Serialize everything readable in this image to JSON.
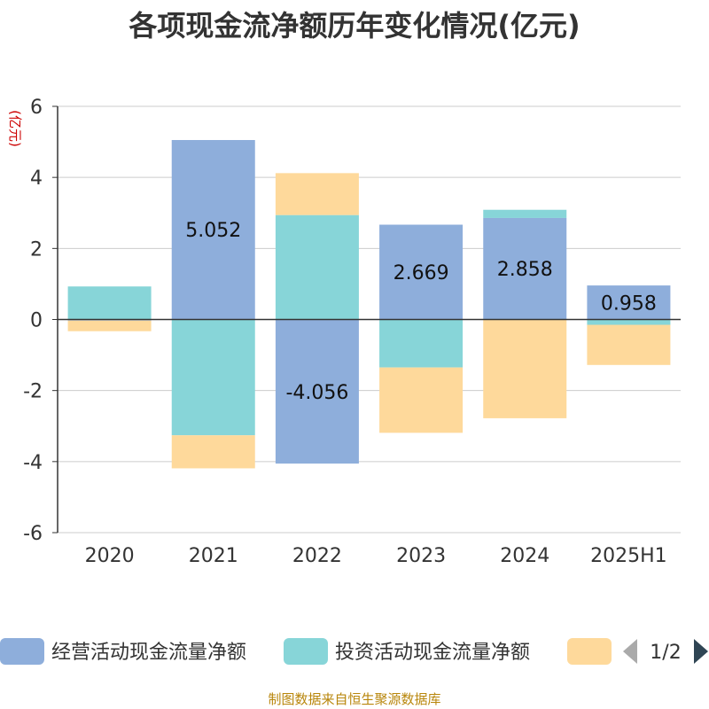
{
  "chart_data": {
    "type": "bar",
    "stacked": true,
    "title": "各项现金流净额历年变化情况(亿元)",
    "ylabel": "(亿元)",
    "categories": [
      "2020",
      "2021",
      "2022",
      "2023",
      "2024",
      "2025H1"
    ],
    "ylim": [
      -6,
      6
    ],
    "yticks": [
      6,
      4,
      2,
      0,
      -2,
      -4,
      -6
    ],
    "grid": true,
    "legend_position": "bottom",
    "series": [
      {
        "name": "经营活动现金流量净额",
        "color": "#8eaedb",
        "values": [
          -0.03,
          5.052,
          -4.056,
          2.669,
          2.858,
          0.958
        ],
        "labels": [
          "",
          "5.052",
          "-4.056",
          "2.669",
          "2.858",
          "0.958"
        ]
      },
      {
        "name": "投资活动现金流量净额",
        "color": "#87d5d8",
        "values": [
          0.93,
          -3.26,
          2.94,
          -1.35,
          0.23,
          -0.15
        ]
      },
      {
        "name": "",
        "color": "#fed99b",
        "values": [
          -0.3,
          -0.93,
          1.18,
          -1.84,
          -2.78,
          -1.13
        ]
      }
    ]
  },
  "legend": {
    "page": "1/2"
  },
  "footer": "制图数据来自恒生聚源数据库"
}
